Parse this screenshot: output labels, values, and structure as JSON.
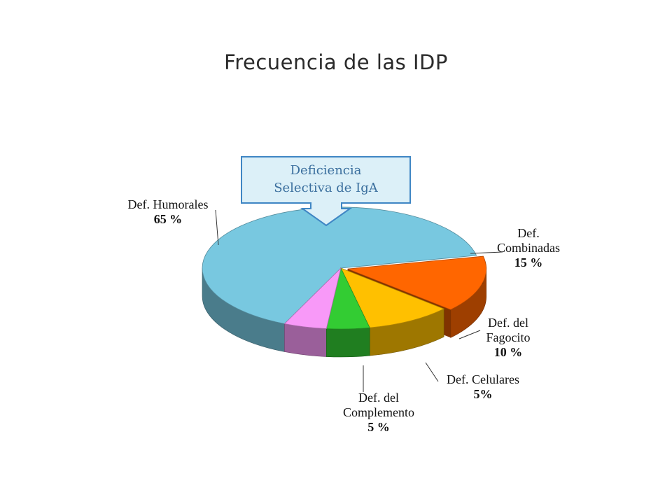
{
  "colors": {
    "humorales": "#78c8e0",
    "combinadas": "#ff6600",
    "fagocito": "#ffc000",
    "celulares": "#33cc33",
    "complemento": "#f899f8",
    "callout_fill": "#dcf0f8",
    "callout_border": "#3f86c4"
  },
  "chart_data": {
    "type": "pie",
    "title": "Frecuencia de las IDP",
    "slices": [
      {
        "name_lines": [
          "Def. Humorales"
        ],
        "value": 65,
        "value_label": "65 %",
        "color": "#78c8e0"
      },
      {
        "name_lines": [
          "Def.",
          "Combinadas"
        ],
        "value": 15,
        "value_label": "15 %",
        "color": "#ff6600"
      },
      {
        "name_lines": [
          "Def. del",
          "Fagocito"
        ],
        "value": 10,
        "value_label": "10 %",
        "color": "#ffc000"
      },
      {
        "name_lines": [
          "Def. Celulares"
        ],
        "value": 5,
        "value_label": "5%",
        "color": "#33cc33"
      },
      {
        "name_lines": [
          "Def. del",
          "Complemento"
        ],
        "value": 5,
        "value_label": "5 %",
        "color": "#f899f8"
      }
    ],
    "annotation": {
      "lines": [
        "Deficiencia",
        "Selectiva de IgA"
      ]
    }
  }
}
